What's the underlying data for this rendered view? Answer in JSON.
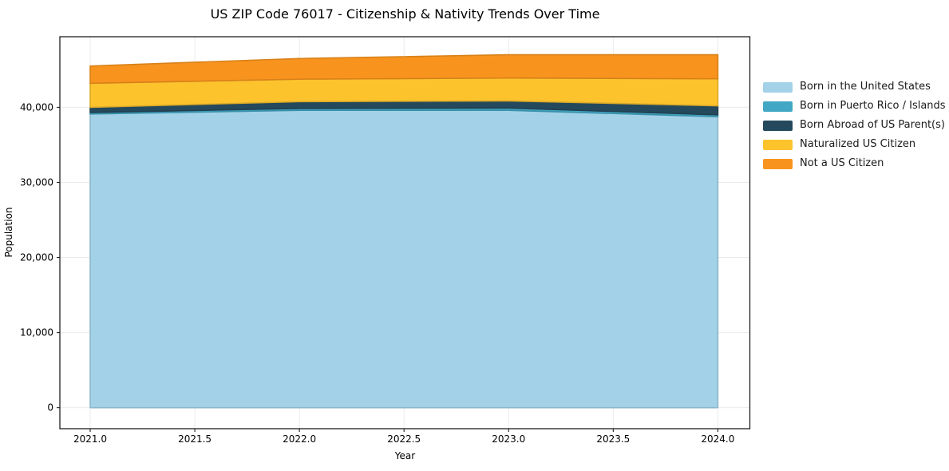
{
  "chart_data": {
    "type": "area",
    "stacked": true,
    "title": "US ZIP Code 76017 - Citizenship & Nativity Trends Over Time",
    "xlabel": "Year",
    "ylabel": "Population",
    "x": [
      2021,
      2022,
      2023,
      2024
    ],
    "series": [
      {
        "name": "Born in the United States",
        "color": "#a3d2e8",
        "values": [
          39100,
          39600,
          39600,
          38750
        ]
      },
      {
        "name": "Born in Puerto Rico / Islands",
        "color": "#41a7c4",
        "values": [
          200,
          250,
          300,
          250
        ]
      },
      {
        "name": "Born Abroad of US Parent(s)",
        "color": "#25495c",
        "values": [
          700,
          900,
          950,
          1200
        ]
      },
      {
        "name": "Naturalized US Citizen",
        "color": "#fcc32d",
        "values": [
          3200,
          3000,
          3050,
          3600
        ]
      },
      {
        "name": "Not a US Citizen",
        "color": "#f8941e",
        "values": [
          2300,
          2750,
          3100,
          3200
        ]
      }
    ],
    "stack_totals": [
      45500,
      46500,
      47000,
      47000
    ],
    "x_ticks": {
      "values": [
        2021.0,
        2021.5,
        2022.0,
        2022.5,
        2023.0,
        2023.5,
        2024.0
      ],
      "labels": [
        "2021.0",
        "2021.5",
        "2022.0",
        "2022.5",
        "2023.0",
        "2023.5",
        "2024.0"
      ]
    },
    "y_ticks": {
      "values": [
        0,
        10000,
        20000,
        30000,
        40000
      ],
      "labels": [
        "0",
        "10,000",
        "20,000",
        "30,000",
        "40,000"
      ]
    },
    "xlim": [
      2020.855,
      2024.153
    ],
    "ylim": [
      -2800,
      49400
    ],
    "grid": true,
    "grid_color": "#ebebeb",
    "axis_color": "#1f1f1f",
    "legend_position": "right"
  }
}
